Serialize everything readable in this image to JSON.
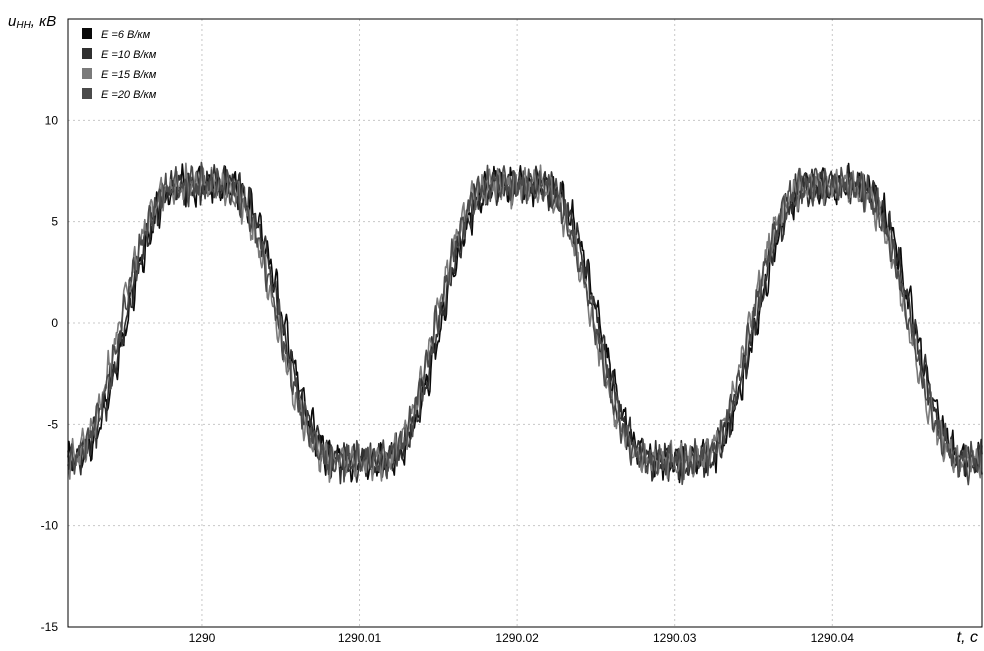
{
  "chart_data": {
    "type": "line",
    "ylabel": "u",
    "ylabel_sub": "НН",
    "ylabel_unit": ", кВ",
    "xlabel": "t, c",
    "xlim": [
      1289.9915,
      1290.0495
    ],
    "ylim": [
      -15,
      15
    ],
    "xticks": [
      1290,
      1290.01,
      1290.02,
      1290.03,
      1290.04
    ],
    "xtick_labels": [
      "1290",
      "1290.01",
      "1290.02",
      "1290.03",
      "1290.04"
    ],
    "yticks": [
      10,
      5,
      0,
      -5,
      -10,
      -15
    ],
    "ytick_labels": [
      "10",
      "5",
      "0",
      "-5",
      "-10",
      "-15"
    ],
    "grid": true,
    "legend_position": "top-left",
    "waveform": {
      "period": 0.02,
      "amplitude_kV": 7.8,
      "zero_cross_up": 1289.995,
      "ripple_kV": 0.8
    },
    "series": [
      {
        "name": "E =6 В/км",
        "color": "#0a0a0a",
        "phase_shift": 0.0002
      },
      {
        "name": "E =10 В/км",
        "color": "#303030",
        "phase_shift": 0.0001
      },
      {
        "name": "E =15 В/км",
        "color": "#7a7a7a",
        "phase_shift": -0.0002
      },
      {
        "name": "E =20 В/км",
        "color": "#4a4a4a",
        "phase_shift": -0.0001
      }
    ]
  }
}
